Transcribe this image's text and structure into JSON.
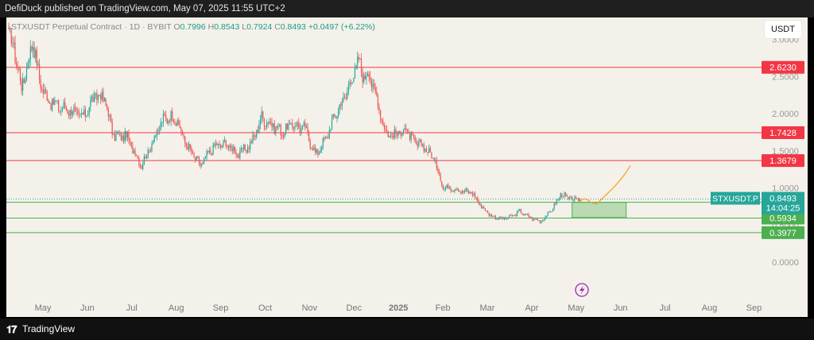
{
  "header": {
    "text": "DefiDuck published on TradingView.com, May 07, 2025 11:55 UTC+2"
  },
  "legend": {
    "symbol": "STXUSDT Perpetual Contract · 1D · BYBIT",
    "o_label": "O",
    "o": "0.7996",
    "h_label": "H",
    "h": "0.8543",
    "l_label": "L",
    "l": "0.7924",
    "c_label": "C",
    "c": "0.8493",
    "change": "+0.0497 (+6.22%)"
  },
  "currency_button": "USDT",
  "footer": {
    "logo": "𝟏𝟕",
    "brand": "TradingView"
  },
  "colors": {
    "up": "#26a69a",
    "down": "#ef5350",
    "resistance": "#f23645",
    "support": "#4caf50",
    "projection": "#f5a623",
    "bg": "#f4f1ea"
  },
  "chart_data": {
    "type": "candlestick",
    "y_axis": {
      "ticks": [
        "3.0000",
        "2.5000",
        "2.0000",
        "1.5000",
        "1.0000",
        "0.5000",
        "0.0000"
      ],
      "tick_values": [
        3.0,
        2.5,
        2.0,
        1.5,
        1.0,
        0.5,
        0.0
      ],
      "ylim": [
        -0.1,
        3.2
      ]
    },
    "x_axis": {
      "ticks": [
        "May",
        "Jun",
        "Jul",
        "Aug",
        "Sep",
        "Oct",
        "Nov",
        "Dec",
        "2025",
        "Feb",
        "Mar",
        "Apr",
        "May",
        "Jun",
        "Jul",
        "Aug",
        "Sep"
      ]
    },
    "anchors": [
      [
        0,
        3.05
      ],
      [
        4,
        2.9
      ],
      [
        10,
        2.35
      ],
      [
        16,
        2.75
      ],
      [
        19,
        3.0
      ],
      [
        24,
        2.45
      ],
      [
        30,
        2.2
      ],
      [
        38,
        2.1
      ],
      [
        48,
        2.05
      ],
      [
        58,
        1.95
      ],
      [
        68,
        2.25
      ],
      [
        75,
        2.2
      ],
      [
        82,
        1.7
      ],
      [
        92,
        1.7
      ],
      [
        104,
        1.3
      ],
      [
        112,
        1.6
      ],
      [
        122,
        1.95
      ],
      [
        130,
        1.95
      ],
      [
        140,
        1.55
      ],
      [
        150,
        1.3
      ],
      [
        160,
        1.55
      ],
      [
        170,
        1.6
      ],
      [
        180,
        1.45
      ],
      [
        190,
        1.6
      ],
      [
        198,
        1.95
      ],
      [
        206,
        1.85
      ],
      [
        214,
        1.75
      ],
      [
        222,
        1.85
      ],
      [
        232,
        1.8
      ],
      [
        240,
        1.45
      ],
      [
        248,
        1.65
      ],
      [
        256,
        2.0
      ],
      [
        264,
        2.25
      ],
      [
        270,
        2.55
      ],
      [
        274,
        2.7
      ],
      [
        278,
        2.5
      ],
      [
        282,
        2.55
      ],
      [
        288,
        2.2
      ],
      [
        295,
        1.75
      ],
      [
        302,
        1.7
      ],
      [
        310,
        1.8
      ],
      [
        318,
        1.6
      ],
      [
        326,
        1.55
      ],
      [
        334,
        1.35
      ],
      [
        340,
        1.0
      ],
      [
        348,
        1.0
      ],
      [
        356,
        0.95
      ],
      [
        362,
        0.95
      ],
      [
        370,
        0.75
      ],
      [
        378,
        0.62
      ],
      [
        386,
        0.58
      ],
      [
        394,
        0.62
      ],
      [
        400,
        0.68
      ],
      [
        408,
        0.6
      ],
      [
        416,
        0.55
      ],
      [
        420,
        0.6
      ],
      [
        426,
        0.73
      ],
      [
        432,
        0.92
      ],
      [
        438,
        0.86
      ],
      [
        442,
        0.84
      ],
      [
        446,
        0.85
      ]
    ],
    "last_price": 0.8493,
    "levels": [
      {
        "value": 2.623,
        "label": "2.6230",
        "kind": "resistance"
      },
      {
        "value": 1.7428,
        "label": "1.7428",
        "kind": "resistance"
      },
      {
        "value": 1.3679,
        "label": "1.3679",
        "kind": "resistance"
      },
      {
        "value": 0.8055,
        "label": "0.8055",
        "kind": "support"
      },
      {
        "value": 0.5934,
        "label": "0.5934",
        "kind": "support"
      },
      {
        "value": 0.3977,
        "label": "0.3977",
        "kind": "support"
      }
    ],
    "price_tag": {
      "symbol": "STXUSDT.P",
      "price": "0.8493",
      "countdown": "14:04:25"
    },
    "accumulation_zone": {
      "y_top": 0.8055,
      "y_bottom": 0.6
    },
    "projection": [
      [
        0.78,
        0.8
      ],
      [
        0.85,
        0.72
      ],
      [
        0.95,
        0.8
      ],
      [
        1.25,
        1.3
      ]
    ]
  }
}
